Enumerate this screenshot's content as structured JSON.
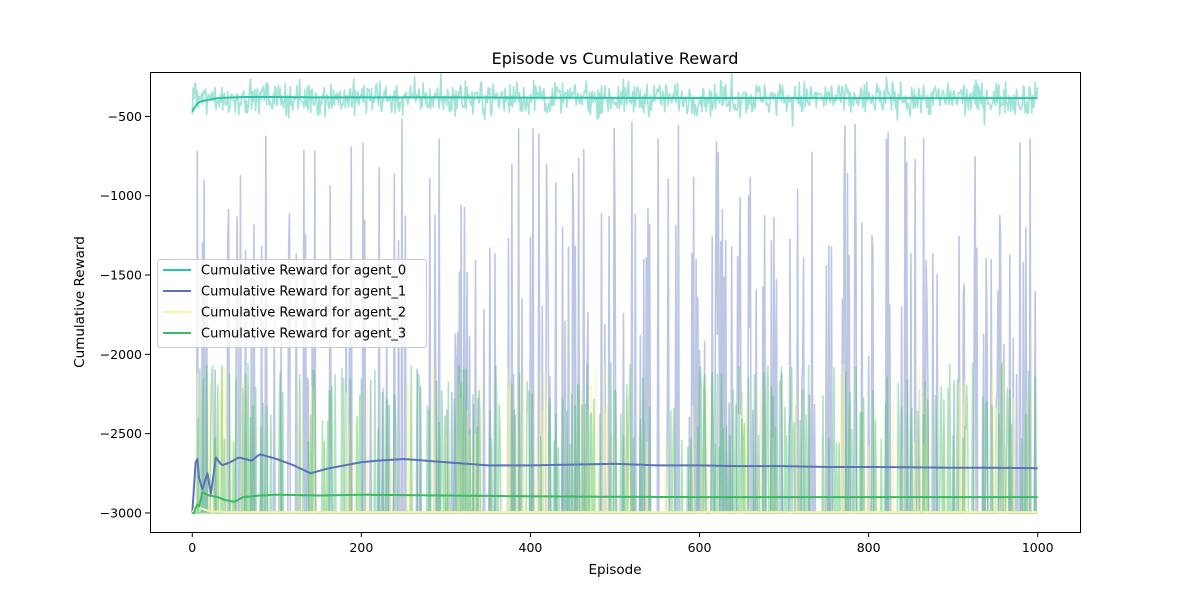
{
  "chart_data": {
    "type": "line",
    "title": "Episode vs Cumulative Reward",
    "xlabel": "Episode",
    "ylabel": "Cumulative Reward",
    "xlim": [
      -50,
      1050
    ],
    "ylim": [
      -3120,
      -220
    ],
    "xticks": [
      0,
      200,
      400,
      600,
      800,
      1000
    ],
    "xtick_labels": [
      "0",
      "200",
      "400",
      "600",
      "800",
      "1000"
    ],
    "yticks": [
      -3000,
      -2500,
      -2000,
      -1500,
      -1000,
      -500
    ],
    "ytick_labels": [
      "−3000",
      "−2500",
      "−2000",
      "−1500",
      "−1000",
      "−500"
    ],
    "grid": false,
    "legend_position": "center-left",
    "episodes": 1000,
    "series": [
      {
        "name": "Cumulative Reward for agent_0",
        "color": "#2ec4a6",
        "raw_alpha": 0.45,
        "avg_x": [
          0,
          3,
          6,
          10,
          15,
          20,
          30,
          40,
          50,
          60,
          80,
          100,
          150,
          200,
          300,
          400,
          500,
          600,
          700,
          800,
          900,
          1000
        ],
        "avg_y": [
          -470,
          -440,
          -420,
          -405,
          -400,
          -395,
          -385,
          -382,
          -380,
          -378,
          -378,
          -378,
          -380,
          -380,
          -380,
          -382,
          -383,
          -384,
          -384,
          -385,
          -385,
          -385
        ],
        "raw_center": -385,
        "raw_spread": 95,
        "raw_min": -600,
        "raw_max": -220
      },
      {
        "name": "Cumulative Reward for agent_1",
        "color": "#5b73b8",
        "raw_alpha": 0.4,
        "avg_x": [
          0,
          5,
          8,
          12,
          18,
          22,
          28,
          35,
          45,
          55,
          70,
          80,
          100,
          120,
          140,
          160,
          180,
          200,
          220,
          250,
          300,
          350,
          400,
          450,
          500,
          550,
          600,
          650,
          700,
          750,
          800,
          850,
          900,
          950,
          1000
        ],
        "avg_y": [
          -3000,
          -2600,
          -2780,
          -2850,
          -2750,
          -2880,
          -2650,
          -2700,
          -2680,
          -2650,
          -2670,
          -2630,
          -2660,
          -2700,
          -2750,
          -2720,
          -2700,
          -2680,
          -2670,
          -2660,
          -2680,
          -2700,
          -2700,
          -2695,
          -2690,
          -2700,
          -2700,
          -2705,
          -2705,
          -2710,
          -2710,
          -2712,
          -2715,
          -2715,
          -2718
        ],
        "raw_spike_prob": 0.22,
        "raw_spike_min": -2400,
        "raw_spike_max": -500,
        "raw_base": -3000,
        "raw_max": -500
      },
      {
        "name": "Cumulative Reward for agent_2",
        "color": "#f5f5a8",
        "raw_alpha": 0.6,
        "avg_x": [
          0,
          5,
          10,
          20,
          40,
          60,
          100,
          200,
          400,
          600,
          800,
          1000
        ],
        "avg_y": [
          -3000,
          -2950,
          -2970,
          -2990,
          -2995,
          -2995,
          -2995,
          -2995,
          -2995,
          -2995,
          -2995,
          -2995
        ],
        "raw_spike_prob": 0.08,
        "raw_spike_min": -2600,
        "raw_spike_max": -2050,
        "raw_base": -3000,
        "raw_max": -2050
      },
      {
        "name": "Cumulative Reward for agent_3",
        "color": "#3aba62",
        "raw_alpha": 0.4,
        "avg_x": [
          0,
          3,
          5,
          8,
          12,
          20,
          30,
          40,
          50,
          60,
          80,
          100,
          150,
          200,
          300,
          400,
          500,
          600,
          700,
          800,
          900,
          1000
        ],
        "avg_y": [
          -3000,
          -3000,
          -2940,
          -2960,
          -2870,
          -2890,
          -2900,
          -2920,
          -2930,
          -2900,
          -2890,
          -2885,
          -2890,
          -2885,
          -2890,
          -2895,
          -2898,
          -2900,
          -2900,
          -2900,
          -2900,
          -2900
        ],
        "raw_spike_prob": 0.25,
        "raw_spike_min": -2600,
        "raw_spike_max": -2050,
        "raw_base": -3000,
        "raw_max": -2050
      }
    ]
  }
}
